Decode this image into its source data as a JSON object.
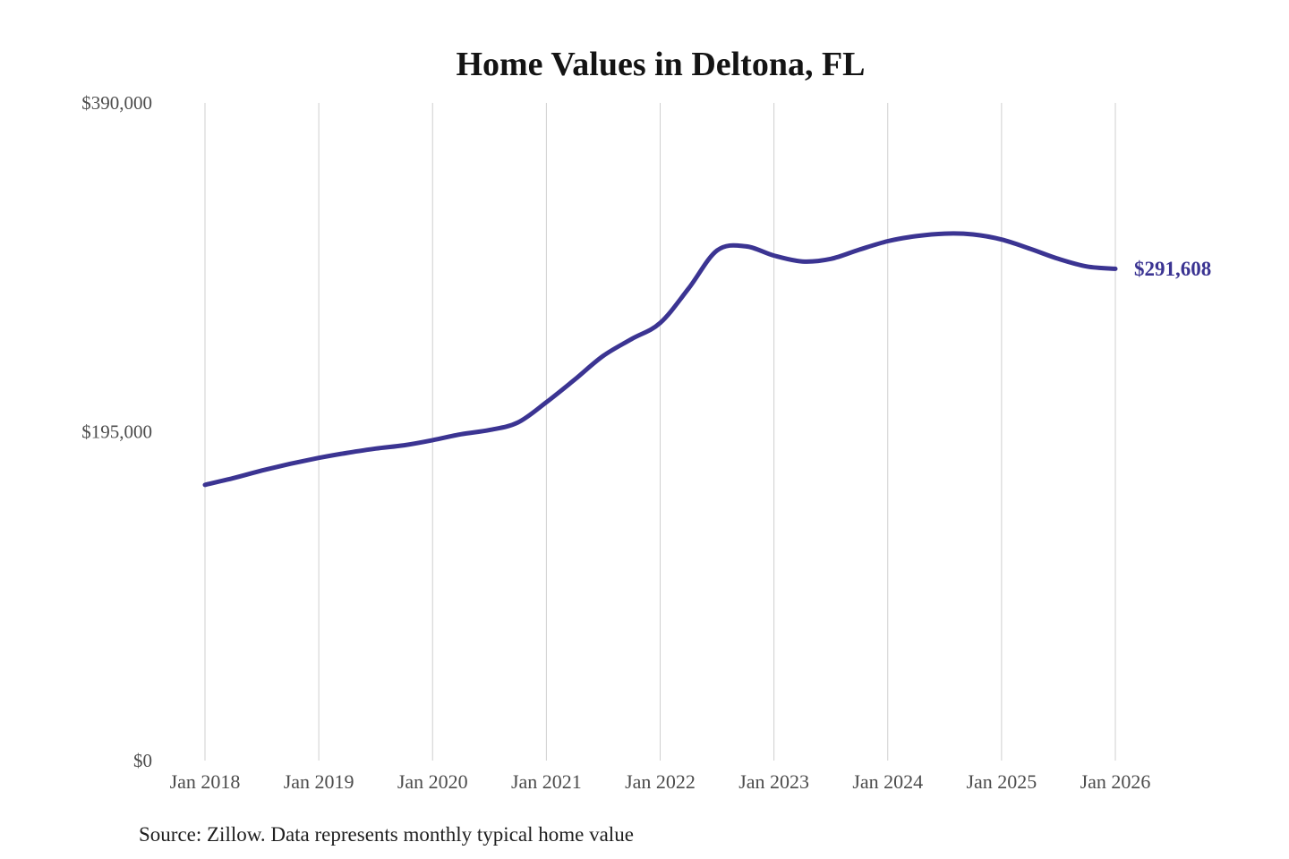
{
  "chart_data": {
    "type": "line",
    "title": "Home Values in Deltona, FL",
    "xlabel": "",
    "ylabel": "",
    "ylim": [
      0,
      390000
    ],
    "y_tick_values": [
      0,
      195000,
      390000
    ],
    "y_tick_labels": [
      "$0",
      "$195,000",
      "$390,000"
    ],
    "x_tick_labels": [
      "Jan 2018",
      "Jan 2019",
      "Jan 2020",
      "Jan 2021",
      "Jan 2022",
      "Jan 2023",
      "Jan 2024",
      "Jan 2025",
      "Jan 2026"
    ],
    "grid": "vertical-only",
    "legend": "none",
    "line_color": "#3b3492",
    "end_label": "$291,608",
    "end_value": 291608,
    "series": [
      {
        "name": "Monthly typical home value",
        "x_months_from_jan2018": [
          0,
          3,
          6,
          9,
          12,
          15,
          18,
          21,
          24,
          27,
          30,
          33,
          36,
          39,
          42,
          45,
          48,
          51,
          54,
          57,
          60,
          63,
          66,
          69,
          72,
          75,
          78,
          81,
          84,
          87,
          90,
          93,
          96
        ],
        "x_labels": [
          "Jan 2018",
          "Apr 2018",
          "Jul 2018",
          "Oct 2018",
          "Jan 2019",
          "Apr 2019",
          "Jul 2019",
          "Oct 2019",
          "Jan 2020",
          "Apr 2020",
          "Jul 2020",
          "Oct 2020",
          "Jan 2021",
          "Apr 2021",
          "Jul 2021",
          "Oct 2021",
          "Jan 2022",
          "Apr 2022",
          "Jul 2022",
          "Oct 2022",
          "Jan 2023",
          "Apr 2023",
          "Jul 2023",
          "Oct 2023",
          "Jan 2024",
          "Apr 2024",
          "Jul 2024",
          "Oct 2024",
          "Jan 2025",
          "Apr 2025",
          "Jul 2025",
          "Oct 2025",
          "Jan 2026"
        ],
        "values": [
          163500,
          167500,
          172000,
          176000,
          179500,
          182500,
          185000,
          187000,
          190000,
          193500,
          196000,
          200500,
          212500,
          226000,
          240000,
          250000,
          259500,
          280000,
          302500,
          305000,
          299500,
          296000,
          297500,
          303000,
          308000,
          311000,
          312500,
          312000,
          309000,
          303500,
          297500,
          293000,
          291608
        ]
      }
    ],
    "source": "Source: Zillow. Data represents monthly typical home value"
  }
}
